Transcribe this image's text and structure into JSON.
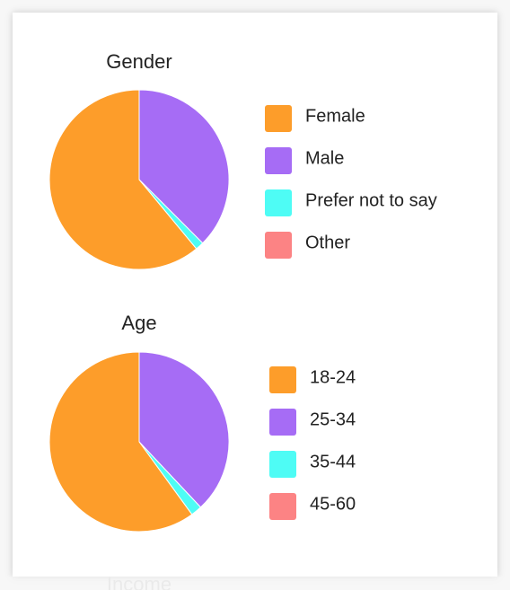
{
  "chart_data": [
    {
      "type": "pie",
      "title": "Gender",
      "categories": [
        "Female",
        "Male",
        "Prefer not to say",
        "Other"
      ],
      "values": [
        61,
        37.5,
        1.5,
        0
      ],
      "colors": [
        "#fd9d2a",
        "#a66cf5",
        "#4efcf5",
        "#fc8384"
      ]
    },
    {
      "type": "pie",
      "title": "Age",
      "categories": [
        "18-24",
        "25-34",
        "35-44",
        "45-60"
      ],
      "values": [
        60,
        38,
        2,
        0
      ],
      "colors": [
        "#fd9d2a",
        "#a66cf5",
        "#4efcf5",
        "#fc8384"
      ]
    }
  ],
  "next_section": "Income"
}
